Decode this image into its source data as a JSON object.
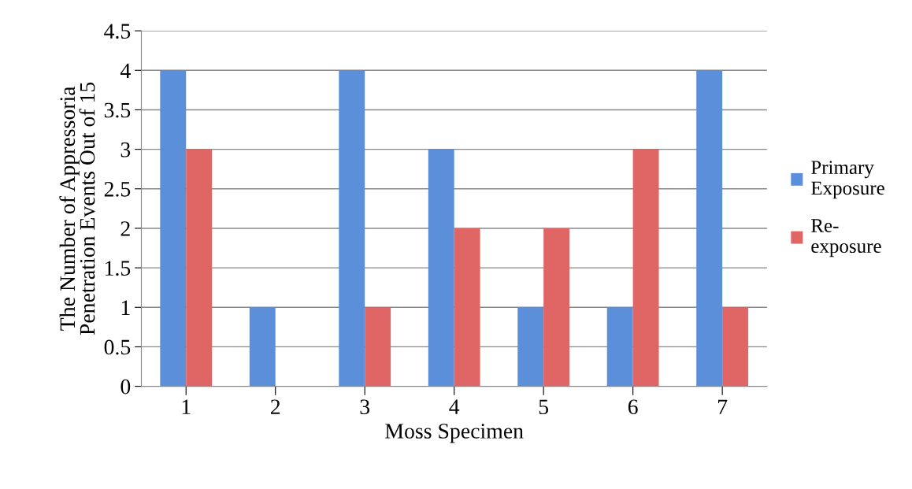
{
  "chart_data": {
    "type": "bar",
    "xlabel": "Moss Specimen",
    "ylabel": "The Number of Appressoria\nPenetration Events Out of 15",
    "categories": [
      "1",
      "2",
      "3",
      "4",
      "5",
      "6",
      "7"
    ],
    "series": [
      {
        "name": "Primary\nExposure",
        "color": "#5b8fd9",
        "values": [
          4,
          1,
          4,
          3,
          1,
          1,
          4
        ]
      },
      {
        "name": "Re-\nexposure",
        "color": "#e06666",
        "values": [
          3,
          0,
          1,
          2,
          2,
          3,
          1
        ]
      }
    ],
    "ylim": [
      0,
      4.5
    ],
    "yticks": [
      0,
      0.5,
      1,
      1.5,
      2,
      2.5,
      3,
      3.5,
      4,
      4.5
    ],
    "grid": "y",
    "legend": "right"
  }
}
